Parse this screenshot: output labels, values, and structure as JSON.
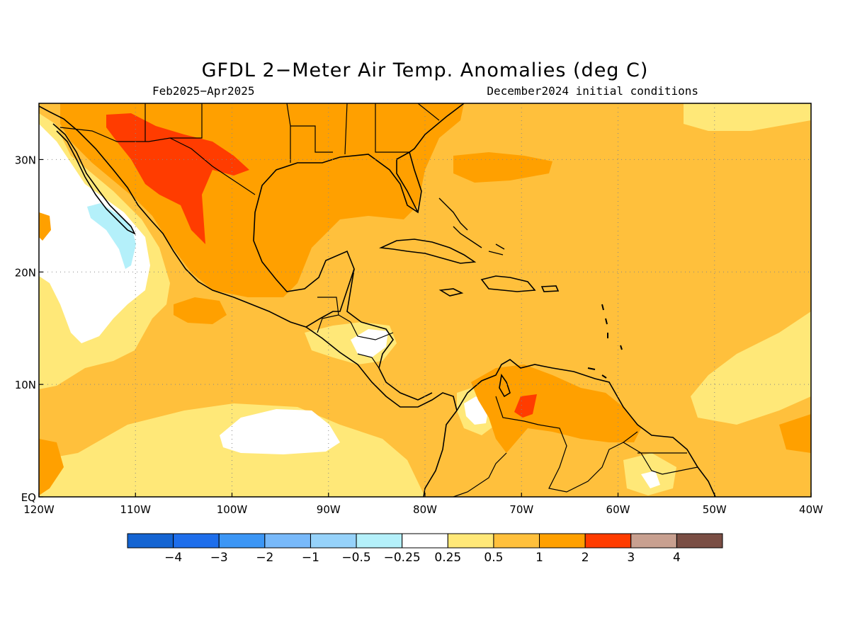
{
  "title": "GFDL 2−Meter Air Temp. Anomalies (deg C)",
  "period": "Feb2025−Apr2025",
  "initial_conditions": "December2024 initial conditions",
  "map": {
    "lon_range": [
      -120,
      -40
    ],
    "lat_range": [
      0,
      35
    ],
    "lat_ticks": [
      {
        "v": 30,
        "label": "30N"
      },
      {
        "v": 20,
        "label": "20N"
      },
      {
        "v": 10,
        "label": "10N"
      },
      {
        "v": 0,
        "label": "EQ"
      }
    ],
    "lon_ticks": [
      {
        "v": -120,
        "label": "120W"
      },
      {
        "v": -110,
        "label": "110W"
      },
      {
        "v": -100,
        "label": "100W"
      },
      {
        "v": -90,
        "label": "90W"
      },
      {
        "v": -80,
        "label": "80W"
      },
      {
        "v": -70,
        "label": "70W"
      },
      {
        "v": -60,
        "label": "60W"
      },
      {
        "v": -50,
        "label": "50W"
      },
      {
        "v": -40,
        "label": "40W"
      }
    ],
    "gridlines": "dotted"
  },
  "colorbar": {
    "colors": [
      "#1464d2",
      "#1e6eeb",
      "#3c96f5",
      "#78b9fa",
      "#96d2fa",
      "#b4f0fa",
      "#ffffff",
      "#ffe878",
      "#ffc03c",
      "#ffa000",
      "#ff3c00",
      "#c8a090",
      "#7a4e44"
    ],
    "labels": [
      "−4",
      "−3",
      "−2",
      "−1",
      "−0.5",
      "−0.25",
      "0.25",
      "0.5",
      "1",
      "2",
      "3",
      "4"
    ]
  }
}
